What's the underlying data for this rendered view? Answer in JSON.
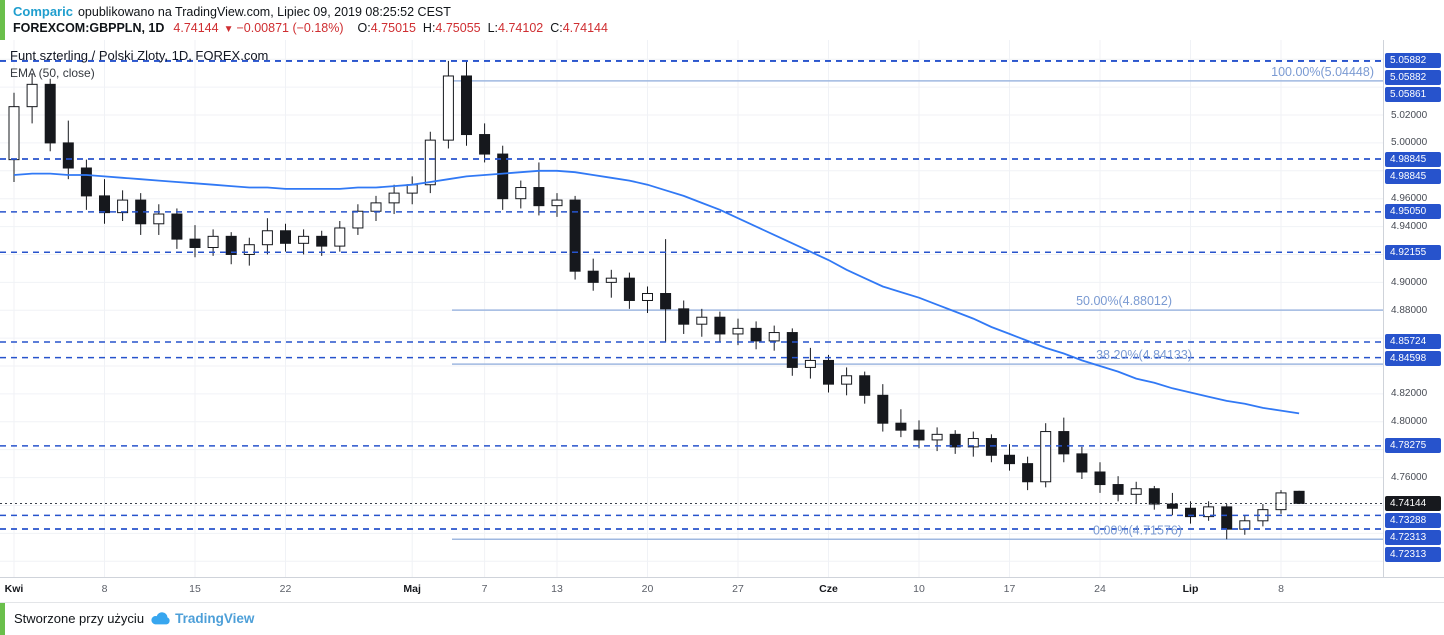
{
  "header": {
    "brand": "Comparic",
    "published": "opublikowano na TradingView.com, Lipiec 09, 2019 08:25:52 CEST",
    "symbol": "FOREXCOM:GBPPLN, 1D",
    "last_price": "4.74144",
    "down_arrow": "▼",
    "change": "−0.00871 (−0.18%)",
    "ohlc": [
      {
        "label": "O:",
        "value": "4.75015"
      },
      {
        "label": "H:",
        "value": "4.75055"
      },
      {
        "label": "L:",
        "value": "4.74102"
      },
      {
        "label": "C:",
        "value": "4.74144"
      }
    ]
  },
  "chart": {
    "title": "Funt szterling / Polski Zloty, 1D, FOREX.com",
    "indicator": "EMA (50, close)"
  },
  "footer": {
    "text": "Stworzone przy użyciu",
    "logo": "TradingView"
  },
  "colors": {
    "up": "#ffffff",
    "down": "#16181d",
    "wick": "#16181d",
    "candle_border": "#16181d",
    "ema": "#3179f5",
    "drawing_line": "#2753cc",
    "badge": "#2753cc",
    "badge_dark": "#17191e",
    "fib_line": "#9fb8e0",
    "fib_label": "#7a9ad2",
    "grid": "#f0f2f6",
    "axis_text": "#474b54",
    "accent_green": "#6abf4b",
    "brand_blue": "#1f9ece",
    "red": "#cf2e31",
    "tv_blue": "#42a4e0"
  },
  "chart_data": {
    "type": "candlestick",
    "symbol": "GBPPLN",
    "timeframe": "1D",
    "title": "Funt szterling / Polski Zloty, 1D, FOREX.com",
    "y_range": [
      4.6887,
      5.0738
    ],
    "y_grid_step": 0.02,
    "last_price": 4.74144,
    "x_ticks": [
      {
        "i": 0,
        "label": "Kwi",
        "month": true
      },
      {
        "i": 5,
        "label": "8"
      },
      {
        "i": 10,
        "label": "15"
      },
      {
        "i": 15,
        "label": "22"
      },
      {
        "i": 22,
        "label": "Maj",
        "month": true
      },
      {
        "i": 26,
        "label": "7"
      },
      {
        "i": 30,
        "label": "13"
      },
      {
        "i": 35,
        "label": "20"
      },
      {
        "i": 40,
        "label": "27"
      },
      {
        "i": 45,
        "label": "Cze",
        "month": true
      },
      {
        "i": 50,
        "label": "10"
      },
      {
        "i": 55,
        "label": "17"
      },
      {
        "i": 60,
        "label": "24"
      },
      {
        "i": 65,
        "label": "Lip",
        "month": true
      },
      {
        "i": 70,
        "label": "8"
      }
    ],
    "candles": [
      [
        4.988,
        5.036,
        4.972,
        5.026
      ],
      [
        5.026,
        5.05,
        5.014,
        5.042
      ],
      [
        5.042,
        5.046,
        4.994,
        5.0
      ],
      [
        5.0,
        5.016,
        4.974,
        4.982
      ],
      [
        4.982,
        4.988,
        4.952,
        4.962
      ],
      [
        4.962,
        4.974,
        4.942,
        4.95
      ],
      [
        4.95,
        4.966,
        4.944,
        4.959
      ],
      [
        4.959,
        4.964,
        4.934,
        4.942
      ],
      [
        4.942,
        4.956,
        4.934,
        4.949
      ],
      [
        4.949,
        4.953,
        4.924,
        4.931
      ],
      [
        4.931,
        4.941,
        4.918,
        4.925
      ],
      [
        4.925,
        4.938,
        4.919,
        4.933
      ],
      [
        4.933,
        4.936,
        4.913,
        4.92
      ],
      [
        4.92,
        4.932,
        4.912,
        4.927
      ],
      [
        4.927,
        4.946,
        4.92,
        4.937
      ],
      [
        4.937,
        4.942,
        4.922,
        4.928
      ],
      [
        4.928,
        4.938,
        4.92,
        4.933
      ],
      [
        4.933,
        4.937,
        4.919,
        4.926
      ],
      [
        4.926,
        4.944,
        4.922,
        4.939
      ],
      [
        4.939,
        4.956,
        4.934,
        4.951
      ],
      [
        4.951,
        4.962,
        4.944,
        4.957
      ],
      [
        4.957,
        4.97,
        4.949,
        4.964
      ],
      [
        4.964,
        4.976,
        4.956,
        4.97
      ],
      [
        4.97,
        5.008,
        4.964,
        5.002
      ],
      [
        5.002,
        5.05882,
        4.996,
        5.048
      ],
      [
        5.048,
        5.05861,
        4.998,
        5.006
      ],
      [
        5.006,
        5.014,
        4.986,
        4.992
      ],
      [
        4.992,
        4.998,
        4.952,
        4.96
      ],
      [
        4.96,
        4.973,
        4.953,
        4.968
      ],
      [
        4.968,
        4.986,
        4.948,
        4.955
      ],
      [
        4.955,
        4.964,
        4.947,
        4.959
      ],
      [
        4.959,
        4.962,
        4.902,
        4.908
      ],
      [
        4.908,
        4.917,
        4.894,
        4.9
      ],
      [
        4.9,
        4.909,
        4.889,
        4.903
      ],
      [
        4.903,
        4.907,
        4.881,
        4.887
      ],
      [
        4.887,
        4.897,
        4.878,
        4.892
      ],
      [
        4.892,
        4.931,
        4.857,
        4.881
      ],
      [
        4.881,
        4.887,
        4.863,
        4.87
      ],
      [
        4.87,
        4.881,
        4.861,
        4.875
      ],
      [
        4.875,
        4.879,
        4.857,
        4.863
      ],
      [
        4.863,
        4.874,
        4.855,
        4.867
      ],
      [
        4.867,
        4.872,
        4.852,
        4.858
      ],
      [
        4.858,
        4.869,
        4.851,
        4.864
      ],
      [
        4.864,
        4.867,
        4.833,
        4.839
      ],
      [
        4.839,
        4.853,
        4.831,
        4.844
      ],
      [
        4.844,
        4.848,
        4.821,
        4.827
      ],
      [
        4.827,
        4.839,
        4.819,
        4.833
      ],
      [
        4.833,
        4.836,
        4.813,
        4.819
      ],
      [
        4.819,
        4.827,
        4.793,
        4.799
      ],
      [
        4.799,
        4.809,
        4.789,
        4.794
      ],
      [
        4.794,
        4.801,
        4.781,
        4.787
      ],
      [
        4.787,
        4.796,
        4.779,
        4.791
      ],
      [
        4.791,
        4.794,
        4.777,
        4.782
      ],
      [
        4.782,
        4.793,
        4.775,
        4.788
      ],
      [
        4.788,
        4.791,
        4.771,
        4.776
      ],
      [
        4.776,
        4.784,
        4.765,
        4.77
      ],
      [
        4.77,
        4.775,
        4.751,
        4.757
      ],
      [
        4.757,
        4.799,
        4.753,
        4.793
      ],
      [
        4.793,
        4.803,
        4.771,
        4.777
      ],
      [
        4.777,
        4.782,
        4.759,
        4.764
      ],
      [
        4.764,
        4.771,
        4.749,
        4.755
      ],
      [
        4.755,
        4.761,
        4.743,
        4.748
      ],
      [
        4.748,
        4.757,
        4.741,
        4.752
      ],
      [
        4.752,
        4.754,
        4.737,
        4.741
      ],
      [
        4.741,
        4.749,
        4.733,
        4.738
      ],
      [
        4.738,
        4.743,
        4.727,
        4.732
      ],
      [
        4.732,
        4.743,
        4.729,
        4.739
      ],
      [
        4.739,
        4.741,
        4.7158,
        4.723
      ],
      [
        4.723,
        4.733,
        4.719,
        4.729
      ],
      [
        4.729,
        4.741,
        4.725,
        4.737
      ],
      [
        4.737,
        4.751,
        4.734,
        4.749
      ],
      [
        4.75015,
        4.75055,
        4.74102,
        4.74144
      ]
    ],
    "ema50": [
      4.977,
      4.978,
      4.978,
      4.977,
      4.977,
      4.976,
      4.975,
      4.974,
      4.973,
      4.972,
      4.971,
      4.97,
      4.969,
      4.968,
      4.968,
      4.967,
      4.967,
      4.967,
      4.967,
      4.968,
      4.968,
      4.969,
      4.97,
      4.972,
      4.974,
      4.976,
      4.977,
      4.978,
      4.979,
      4.98,
      4.98,
      4.979,
      4.977,
      4.975,
      4.973,
      4.97,
      4.966,
      4.962,
      4.957,
      4.952,
      4.946,
      4.94,
      4.934,
      4.928,
      4.922,
      4.916,
      4.909,
      4.903,
      4.897,
      4.893,
      4.889,
      4.884,
      4.879,
      4.874,
      4.868,
      4.863,
      4.858,
      4.853,
      4.849,
      4.844,
      4.84,
      4.836,
      4.831,
      4.828,
      4.824,
      4.821,
      4.818,
      4.815,
      4.813,
      4.81,
      4.808,
      4.806
    ],
    "fib_levels": [
      {
        "pct": "100.00%",
        "price": 5.04448,
        "label": "100.00%(5.04448)"
      },
      {
        "pct": "50.00%",
        "price": 4.88012,
        "label": "50.00%(4.88012)"
      },
      {
        "pct": "38.20%",
        "price": 4.84133,
        "label": "38.20%(4.84133)"
      },
      {
        "pct": "0.00%",
        "price": 4.71576,
        "label": "0.00%(4.71576)"
      }
    ],
    "h_lines": [
      5.05882,
      5.05882,
      5.05861,
      4.98845,
      4.98845,
      4.9505,
      4.92155,
      4.85724,
      4.84598,
      4.78275,
      4.73288,
      4.72313,
      4.72313
    ],
    "visible_plain_axis_labels": [
      "5.02000",
      "5.00000",
      "4.96000",
      "4.94000",
      "4.90000",
      "4.88000",
      "4.82000",
      "4.80000",
      "4.76000"
    ]
  }
}
